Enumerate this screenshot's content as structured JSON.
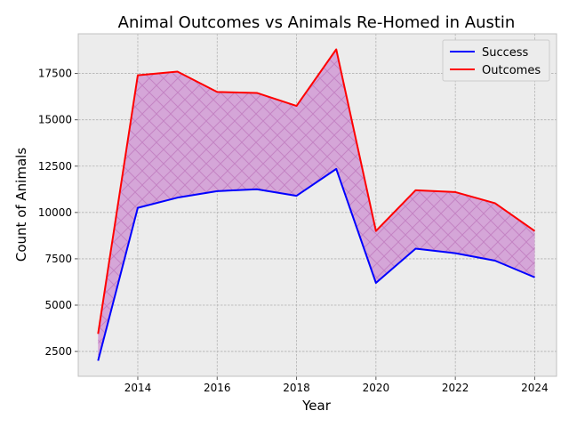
{
  "chart_data": {
    "type": "area",
    "title": "Animal Outcomes vs Animals Re-Homed in Austin",
    "xlabel": "Year",
    "ylabel": "Count of Animals",
    "x": [
      2013,
      2014,
      2015,
      2016,
      2017,
      2018,
      2019,
      2020,
      2021,
      2022,
      2023,
      2024
    ],
    "series": [
      {
        "name": "Success",
        "color": "#0000ff",
        "values": [
          2000,
          10250,
          10800,
          11150,
          11250,
          10900,
          12350,
          6200,
          8050,
          7800,
          7400,
          6500
        ]
      },
      {
        "name": "Outcomes",
        "color": "#ff0000",
        "values": [
          3450,
          17400,
          17600,
          16500,
          16450,
          15750,
          18800,
          9000,
          11200,
          11100,
          10500,
          9000
        ]
      }
    ],
    "fill": {
      "between": [
        "Success",
        "Outcomes"
      ],
      "color": "#d5a6d8",
      "hatch": "x",
      "hatch_color": "#c484c4"
    },
    "xlim": [
      2012.5,
      2024.55
    ],
    "ylim": [
      1160,
      19640
    ],
    "xticks": [
      2014,
      2016,
      2018,
      2020,
      2022,
      2024
    ],
    "xtick_labels": [
      "2014",
      "2016",
      "2018",
      "2020",
      "2022",
      "2024"
    ],
    "yticks": [
      2500,
      5000,
      7500,
      10000,
      12500,
      15000,
      17500
    ],
    "ytick_labels": [
      "2500",
      "5000",
      "7500",
      "10000",
      "12500",
      "15000",
      "17500"
    ],
    "grid": true,
    "legend_position": "top-right",
    "background": "#ececec"
  }
}
